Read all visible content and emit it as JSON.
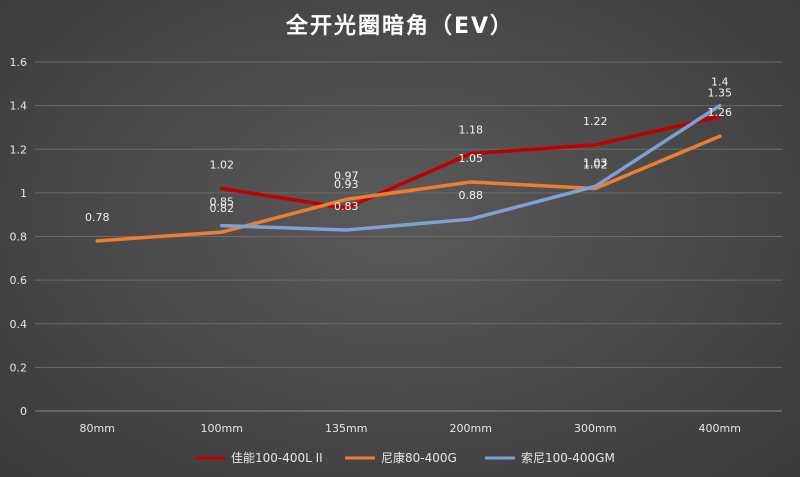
{
  "chart_data": {
    "type": "line",
    "title": "全开光圈暗角（EV）",
    "categories": [
      "80mm",
      "100mm",
      "135mm",
      "200mm",
      "300mm",
      "400mm"
    ],
    "ylim": [
      0,
      1.6
    ],
    "yticks": [
      "0",
      "0.2",
      "0.4",
      "0.6",
      "0.8",
      "1",
      "1.2",
      "1.4",
      "1.6"
    ],
    "grid": true,
    "legend_position": "bottom",
    "series": [
      {
        "name": "佳能100-400L II",
        "color": "#c00000",
        "values": [
          null,
          1.02,
          0.93,
          1.18,
          1.22,
          1.35
        ],
        "labels": [
          "",
          "1.02",
          "0.93",
          "1.18",
          "1.22",
          "1.35"
        ]
      },
      {
        "name": "尼康80-400G",
        "color": "#ed7d31",
        "values": [
          0.78,
          0.82,
          0.97,
          1.05,
          1.02,
          1.26
        ],
        "labels": [
          "0.78",
          "0.82",
          "0.97",
          "1.05",
          "1.02",
          "1.26"
        ]
      },
      {
        "name": "索尼100-400GM",
        "color": "#7f9fd5",
        "values": [
          null,
          0.85,
          0.83,
          0.88,
          1.03,
          1.4
        ],
        "labels": [
          "",
          "0.85",
          "0.83",
          "0.88",
          "1.03",
          "1.4"
        ]
      }
    ]
  }
}
